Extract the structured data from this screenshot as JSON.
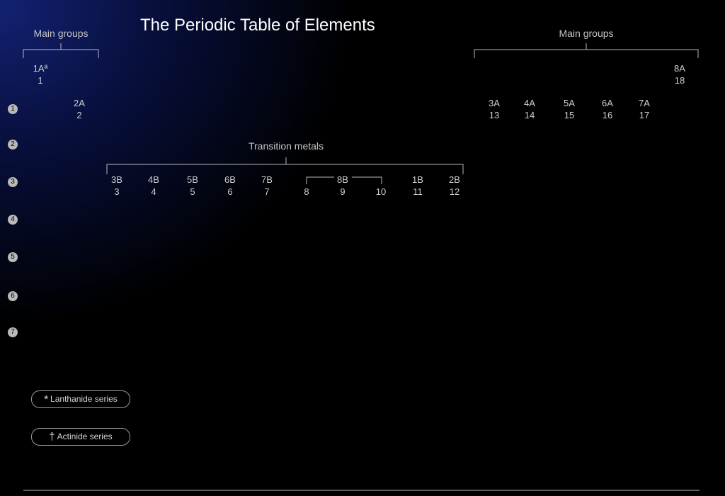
{
  "title": "The Periodic Table of Elements",
  "headers": {
    "main_groups_left": "Main groups",
    "main_groups_right": "Main groups",
    "transition_metals": "Transition metals"
  },
  "groups": [
    {
      "letter": "1Aª",
      "number": "1"
    },
    {
      "letter": "2A",
      "number": "2"
    },
    {
      "letter": "3B",
      "number": "3"
    },
    {
      "letter": "4B",
      "number": "4"
    },
    {
      "letter": "5B",
      "number": "5"
    },
    {
      "letter": "6B",
      "number": "6"
    },
    {
      "letter": "7B",
      "number": "7"
    },
    {
      "letter": "",
      "number": "8"
    },
    {
      "letter": "8B",
      "number": "9"
    },
    {
      "letter": "",
      "number": "10"
    },
    {
      "letter": "1B",
      "number": "11"
    },
    {
      "letter": "2B",
      "number": "12"
    },
    {
      "letter": "3A",
      "number": "13"
    },
    {
      "letter": "4A",
      "number": "14"
    },
    {
      "letter": "5A",
      "number": "15"
    },
    {
      "letter": "6A",
      "number": "16"
    },
    {
      "letter": "7A",
      "number": "17"
    },
    {
      "letter": "8A",
      "number": "18"
    }
  ],
  "periods": [
    "1",
    "2",
    "3",
    "4",
    "5",
    "6",
    "7"
  ],
  "series": {
    "lanthanide": {
      "symbol": "*",
      "label": "Lanthanide series"
    },
    "actinide": {
      "symbol": "†",
      "label": "Actinide series"
    }
  }
}
